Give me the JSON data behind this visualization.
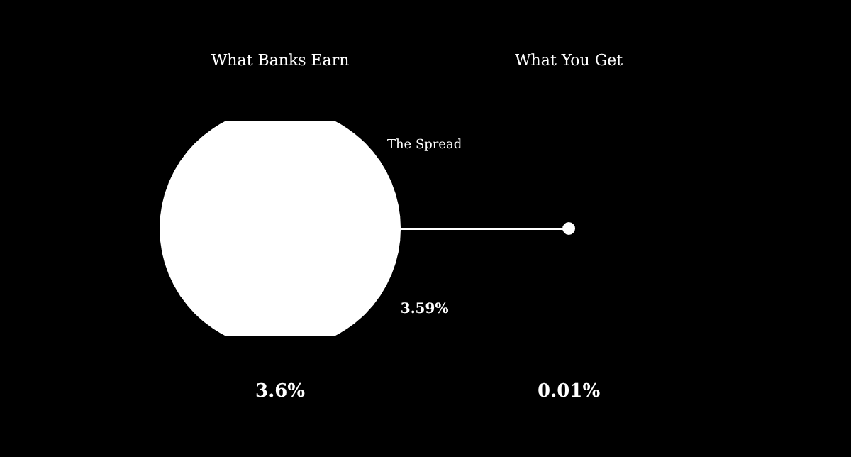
{
  "chart_data": {
    "type": "other",
    "categories": [
      "What Banks Earn",
      "What You Get"
    ],
    "values": [
      3.6,
      0.01
    ],
    "value_labels": [
      "3.6%",
      "0.01%"
    ],
    "color": "#ffffff",
    "annotations": [
      "The Spread",
      "3.59%"
    ]
  }
}
